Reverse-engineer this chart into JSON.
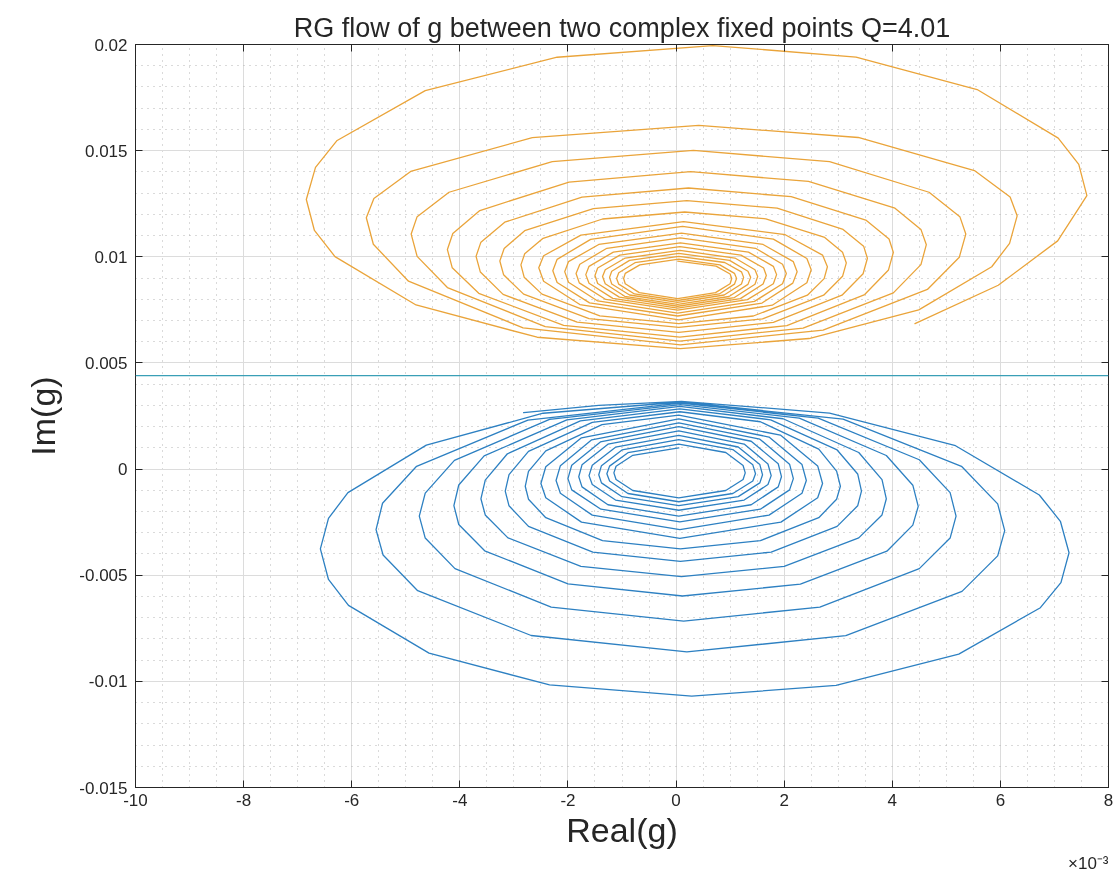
{
  "chart_data": {
    "type": "line",
    "title": "RG flow of g between two complex fixed points Q=4.01",
    "xlabel": "Real(g)",
    "ylabel": "Im(g)",
    "annotations": [
      "×10⁻³"
    ],
    "xlim": [
      -10,
      8
    ],
    "xticks": [
      -10,
      -8,
      -6,
      -4,
      -2,
      0,
      2,
      4,
      6,
      8
    ],
    "ylim": [
      -0.015,
      0.02
    ],
    "yticks": [
      -0.015,
      -0.01,
      -0.005,
      0,
      0.005,
      0.01,
      0.015,
      0.02
    ],
    "grid": true,
    "ref_lines": [
      {
        "axis": "y",
        "value": 0.0044,
        "color": "#3a9fb6"
      }
    ],
    "series": [
      {
        "color": "#eaa43a",
        "x": [
          4.42,
          5.96,
          7.06,
          7.6,
          7.45,
          7.07,
          5.57,
          3.33,
          0.68,
          -2.2,
          -4.64,
          -6.27,
          -6.67,
          -6.84,
          -6.69,
          -6.31,
          -4.81,
          -2.57,
          0.08,
          2.46,
          4.49,
          5.84,
          6.17,
          6.31,
          6.18,
          5.52,
          3.37,
          0.42,
          -2.66,
          -4.91,
          -5.59,
          -5.73,
          -5.6,
          -4.95,
          -2.83,
          0.08,
          2.72,
          4.65,
          5.24,
          5.36,
          5.25,
          4.68,
          2.84,
          0.32,
          -2.29,
          -4.2,
          -4.79,
          -4.9,
          -4.79,
          -4.23,
          -2.42,
          0.07,
          2.35,
          4.02,
          4.53,
          4.63,
          4.53,
          4.05,
          2.45,
          0.27,
          -1.98,
          -3.63,
          -4.13,
          -4.23,
          -4.14,
          -3.65,
          -2.08,
          0.07,
          2.05,
          3.49,
          3.93,
          4.02,
          3.94,
          3.51,
          2.13,
          0.23,
          -1.74,
          -3.17,
          -3.61,
          -3.7,
          -3.62,
          -3.2,
          -1.83,
          0.05,
          1.8,
          3.07,
          3.46,
          3.54,
          3.47,
          3.09,
          1.87,
          0.2,
          -1.53,
          -2.8,
          -3.18,
          -3.26,
          -3.19,
          -2.82,
          -1.61,
          0.05,
          1.6,
          2.73,
          3.08,
          3.15,
          3.08,
          2.75,
          1.66,
          0.16,
          -1.36,
          -2.46,
          -2.8,
          -2.87,
          -2.81,
          -2.48,
          -1.41,
          0.05,
          1.43,
          2.43,
          2.74,
          2.8,
          2.71,
          2.02,
          0.14,
          -1.76,
          -2.45,
          -2.54,
          -2.45,
          -1.78,
          0.05,
          1.78,
          2.42,
          2.5,
          2.42,
          1.8,
          0.12,
          -1.58,
          -2.2,
          -2.28,
          -2.2,
          -1.6,
          0.03,
          1.59,
          2.16,
          2.24,
          2.17,
          1.61,
          0.1,
          -1.43,
          -1.99,
          -2.06,
          -1.99,
          -1.45,
          0.03,
          1.45,
          1.97,
          2.04,
          1.97,
          1.47,
          0.08,
          -1.28,
          -1.78,
          -1.85,
          -1.79,
          -1.3,
          0.03,
          1.32,
          1.8,
          1.86,
          1.8,
          1.34,
          0.08,
          -1.16,
          -1.61,
          -1.67,
          -1.61,
          -1.17,
          0.03,
          1.19,
          1.61,
          1.67,
          1.62,
          1.2,
          0.07,
          -1.04,
          -1.45,
          -1.5,
          -1.45,
          -1.05,
          0.03,
          1.08,
          1.46,
          1.51,
          1.46,
          1.09,
          0.07,
          -0.94,
          -1.31,
          -1.36,
          -1.31,
          -0.95,
          0.03,
          0.98,
          1.33,
          1.38,
          1.33,
          0.99,
          0.05,
          -0.86,
          -1.19,
          -1.23,
          -1.19,
          -0.86,
          0.03,
          0.89,
          1.21,
          1.25,
          1.21,
          0.9,
          0.05,
          -0.76,
          -1.06,
          -1.1,
          -1.06,
          -0.77,
          0.03,
          0.8,
          1.08,
          1.12,
          1.08,
          0.81,
          0.05,
          -0.67,
          -0.94,
          -0.97,
          -0.94,
          -0.68,
          0.03,
          0.73,
          1.0,
          1.03,
          1.0,
          0.74,
          0.03
        ],
        "values": [
          0.00685,
          0.00866,
          0.01075,
          0.01288,
          0.01435,
          0.01559,
          0.01788,
          0.01941,
          0.01995,
          0.0194,
          0.01783,
          0.01548,
          0.01421,
          0.0127,
          0.01124,
          0.01001,
          0.00773,
          0.00621,
          0.00567,
          0.00615,
          0.0075,
          0.00953,
          0.01063,
          0.01193,
          0.01282,
          0.01406,
          0.01562,
          0.01619,
          0.01561,
          0.01402,
          0.01275,
          0.01184,
          0.01059,
          0.00885,
          0.00665,
          0.00585,
          0.00655,
          0.00846,
          0.00998,
          0.01107,
          0.01189,
          0.01304,
          0.01448,
          0.01501,
          0.01448,
          0.01304,
          0.01189,
          0.01107,
          0.01002,
          0.00855,
          0.00671,
          0.00603,
          0.00664,
          0.0083,
          0.00963,
          0.01057,
          0.01129,
          0.01229,
          0.01355,
          0.01401,
          0.01352,
          0.01218,
          0.0111,
          0.01034,
          0.00948,
          0.00828,
          0.00677,
          0.00622,
          0.00676,
          0.00822,
          0.00938,
          0.01021,
          0.01084,
          0.01173,
          0.01283,
          0.01324,
          0.01281,
          0.01163,
          0.01069,
          0.01002,
          0.00928,
          0.00823,
          0.00692,
          0.00644,
          0.00691,
          0.00819,
          0.0092,
          0.00993,
          0.0105,
          0.01129,
          0.01229,
          0.01265,
          0.01227,
          0.01123,
          0.01039,
          0.0098,
          0.00915,
          0.00824,
          0.00709,
          0.00667,
          0.00708,
          0.00819,
          0.00908,
          0.00971,
          0.01021,
          0.01091,
          0.01179,
          0.01211,
          0.01178,
          0.01087,
          0.01014,
          0.00962,
          0.00904,
          0.00824,
          0.00722,
          0.00685,
          0.00721,
          0.00819,
          0.00897,
          0.00953,
          0.01008,
          0.01104,
          0.01166,
          0.01102,
          0.01005,
          0.00948,
          0.00885,
          0.00775,
          0.00703,
          0.00772,
          0.00878,
          0.00939,
          0.00992,
          0.01083,
          0.01143,
          0.01082,
          0.00988,
          0.00934,
          0.00879,
          0.00783,
          0.00721,
          0.00782,
          0.00876,
          0.0093,
          0.00977,
          0.01058,
          0.01111,
          0.01058,
          0.00977,
          0.0093,
          0.0088,
          0.00792,
          0.00735,
          0.0079,
          0.00873,
          0.00921,
          0.00965,
          0.0104,
          0.01089,
          0.0104,
          0.00965,
          0.00921,
          0.00877,
          0.00799,
          0.00749,
          0.00798,
          0.00873,
          0.00916,
          0.00955,
          0.01022,
          0.01066,
          0.01022,
          0.00955,
          0.00916,
          0.00875,
          0.00804,
          0.00758,
          0.00803,
          0.00872,
          0.00912,
          0.00947,
          0.01008,
          0.01048,
          0.01008,
          0.00947,
          0.00912,
          0.00874,
          0.0081,
          0.00767,
          0.00808,
          0.00871,
          0.00907,
          0.00939,
          0.00994,
          0.0103,
          0.00994,
          0.00939,
          0.00907,
          0.00873,
          0.00814,
          0.00776,
          0.00813,
          0.0087,
          0.00903,
          0.00932,
          0.00983,
          0.01016,
          0.00983,
          0.00932,
          0.00903,
          0.00872,
          0.0082,
          0.00785,
          0.0082,
          0.00872,
          0.00903,
          0.00929,
          0.00973,
          0.01002,
          0.00972,
          0.00925,
          0.00898,
          0.00871,
          0.00825,
          0.00794,
          0.00825,
          0.00871,
          0.00898,
          0.00922,
          0.00962,
          0.00989,
          0.00962,
          0.00922,
          0.00898,
          0.00873,
          0.00831,
          0.00803,
          0.00831,
          0.00873,
          0.00898,
          0.00919,
          0.00956,
          0.0098
        ]
      },
      {
        "color": "#2d80c2",
        "x": [
          -2.82,
          -1.43,
          0.1,
          2.84,
          5.17,
          6.72,
          7.11,
          7.27,
          7.12,
          6.74,
          5.23,
          2.96,
          0.29,
          -2.34,
          -4.57,
          -6.06,
          -6.43,
          -6.58,
          -6.43,
          -6.07,
          -4.62,
          -2.46,
          0.1,
          3.09,
          5.28,
          5.95,
          6.08,
          5.95,
          5.29,
          3.14,
          0.2,
          -2.68,
          -4.78,
          -5.42,
          -5.55,
          -5.43,
          -4.8,
          -2.74,
          0.08,
          2.63,
          4.5,
          5.07,
          5.18,
          5.07,
          4.5,
          2.66,
          0.14,
          -2.31,
          -4.09,
          -4.64,
          -4.75,
          -4.64,
          -4.1,
          -2.34,
          0.08,
          2.28,
          3.89,
          4.38,
          4.48,
          4.38,
          3.9,
          2.3,
          0.12,
          -2.0,
          -3.54,
          -4.02,
          -4.11,
          -4.02,
          -3.55,
          -2.02,
          0.07,
          1.98,
          3.38,
          3.81,
          3.89,
          3.81,
          3.38,
          2.0,
          0.1,
          -1.76,
          -3.11,
          -3.53,
          -3.61,
          -3.53,
          -3.12,
          -1.77,
          0.07,
          1.75,
          2.98,
          3.36,
          3.43,
          3.36,
          2.98,
          1.76,
          0.08,
          -1.54,
          -2.73,
          -3.09,
          -3.16,
          -3.09,
          -2.73,
          -1.55,
          0.07,
          1.56,
          2.64,
          2.97,
          3.04,
          2.97,
          2.64,
          1.56,
          0.08,
          -1.36,
          -2.41,
          -2.73,
          -2.79,
          -2.73,
          -2.41,
          -1.37,
          0.05,
          1.93,
          2.62,
          2.71,
          2.62,
          1.94,
          0.07,
          -1.75,
          -2.41,
          -2.5,
          -2.41,
          -1.75,
          0.05,
          1.72,
          2.33,
          2.41,
          2.33,
          1.72,
          0.07,
          -1.55,
          -2.14,
          -2.22,
          -2.14,
          -1.56,
          0.05,
          1.55,
          2.1,
          2.17,
          2.1,
          1.56,
          0.07,
          -1.39,
          -1.93,
          -2.0,
          -1.93,
          -1.4,
          0.05,
          1.39,
          1.89,
          1.95,
          1.89,
          1.39,
          0.05,
          -1.26,
          -1.74,
          -1.8,
          -1.74,
          -1.26,
          0.05,
          1.26,
          1.7,
          1.76,
          1.7,
          1.26,
          0.05,
          -1.12,
          -1.55,
          -1.61,
          -1.55,
          -1.12,
          0.05,
          1.15,
          1.55,
          1.6,
          1.55,
          1.15,
          0.05,
          -1.0,
          -1.38,
          -1.43,
          -1.38,
          -1.0,
          0.05,
          1.05,
          1.42,
          1.47,
          1.42,
          1.05,
          0.05,
          -0.89,
          -1.23,
          -1.28,
          -1.23,
          -0.89,
          0.05,
          0.92,
          1.24,
          1.28,
          1.24,
          0.92,
          0.05,
          -0.8,
          -1.11,
          -1.15,
          -1.11,
          -0.8,
          0.05
        ],
        "values": [
          0.00266,
          0.003,
          0.00319,
          0.00264,
          0.0011,
          -0.00122,
          -0.00246,
          -0.00394,
          -0.00535,
          -0.00653,
          -0.00872,
          -0.01019,
          -0.0107,
          -0.01017,
          -0.00867,
          -0.00642,
          -0.0052,
          -0.00376,
          -0.00232,
          -0.00111,
          0.00113,
          0.00263,
          0.00316,
          0.00235,
          0.00013,
          -0.00164,
          -0.0029,
          -0.00409,
          -0.00576,
          -0.00785,
          -0.00861,
          -0.00784,
          -0.00573,
          -0.00405,
          -0.00285,
          -0.00161,
          0.00013,
          0.00231,
          0.00311,
          0.0024,
          0.00044,
          -0.00111,
          -0.00222,
          -0.00325,
          -0.00469,
          -0.0065,
          -0.00716,
          -0.0065,
          -0.00469,
          -0.00325,
          -0.00222,
          -0.00113,
          0.00041,
          0.00234,
          0.00304,
          0.0024,
          0.00064,
          -0.00076,
          -0.00176,
          -0.00264,
          -0.00387,
          -0.00542,
          -0.00598,
          -0.00541,
          -0.00385,
          -0.00261,
          -0.00172,
          -0.00075,
          0.00062,
          0.00232,
          0.00295,
          0.00237,
          0.00078,
          -0.0005,
          -0.0014,
          -0.00216,
          -0.00324,
          -0.00458,
          -0.00507,
          -0.00458,
          -0.00324,
          -0.00216,
          -0.0014,
          -0.00052,
          0.00072,
          0.00227,
          0.00284,
          0.00232,
          0.0009,
          -0.00023,
          -0.00104,
          -0.00173,
          -0.0027,
          -0.00391,
          -0.00435,
          -0.00391,
          -0.0027,
          -0.00173,
          -0.00104,
          -0.00026,
          0.00083,
          0.0022,
          0.0027,
          0.00223,
          0.00094,
          -0.0001,
          -0.00081,
          -0.00142,
          -0.00229,
          -0.00337,
          -0.00376,
          -0.00337,
          -0.00229,
          -0.00142,
          -0.00081,
          -0.00011,
          0.00086,
          0.00209,
          0.00254,
          0.0016,
          0.00015,
          -0.00068,
          -0.00135,
          -0.0025,
          -0.00326,
          -0.0025,
          -0.00135,
          -0.00068,
          0.00011,
          0.00147,
          0.00236,
          0.00151,
          0.00021,
          -0.00054,
          -0.00114,
          -0.00217,
          -0.00285,
          -0.00217,
          -0.00114,
          -0.00054,
          0.00016,
          0.00138,
          0.00218,
          0.00141,
          0.00023,
          -0.00045,
          -0.00098,
          -0.00189,
          -0.00249,
          -0.00189,
          -0.00098,
          -0.00045,
          0.00018,
          0.00128,
          0.002,
          0.00131,
          0.00025,
          -0.00036,
          -0.00084,
          -0.00168,
          -0.00222,
          -0.00168,
          -0.00084,
          -0.00036,
          0.0002,
          0.00117,
          0.0018,
          0.00118,
          0.00024,
          -0.00031,
          -0.00073,
          -0.00146,
          -0.00194,
          -0.00146,
          -0.00073,
          -0.00031,
          0.00018,
          0.00103,
          0.00159,
          0.00104,
          0.00021,
          -0.00027,
          -0.00065,
          -0.0013,
          -0.00172,
          -0.0013,
          -0.00065,
          -0.00027,
          0.00016,
          0.0009,
          0.00139,
          0.00092,
          0.0002,
          -0.00022,
          -0.00056,
          -0.00115,
          -0.00154,
          -0.00115,
          -0.00056,
          -0.00022,
          0.00014,
          0.00077,
          0.00118,
          0.00078,
          0.00017,
          -0.00018,
          -0.00049,
          -0.00101,
          -0.00136,
          -0.00101,
          -0.00049,
          -0.00018,
          0.00013,
          0.00065,
          0.001
        ]
      }
    ]
  }
}
